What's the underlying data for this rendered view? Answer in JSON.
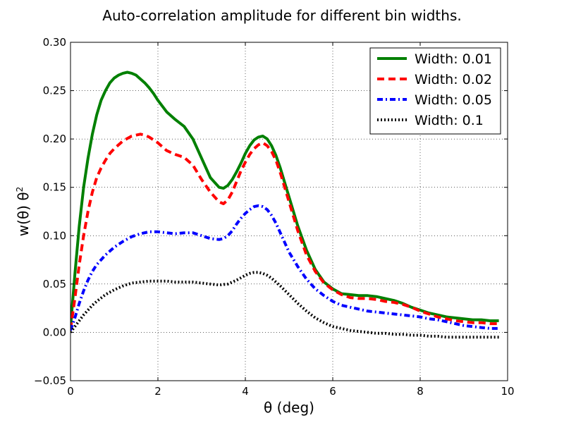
{
  "chart_data": {
    "type": "line",
    "title": "Auto-correlation amplitude for different bin widths.",
    "xlabel": "θ (deg)",
    "ylabel_main": "w(θ) θ",
    "ylabel_superscript": "2",
    "xlim": [
      0,
      10
    ],
    "ylim": [
      -0.05,
      0.3
    ],
    "xticks": [
      0,
      2,
      4,
      6,
      8,
      10
    ],
    "xtick_labels": [
      "0",
      "2",
      "4",
      "6",
      "8",
      "10"
    ],
    "yticks": [
      -0.05,
      0.0,
      0.05,
      0.1,
      0.15,
      0.2,
      0.25,
      0.3
    ],
    "ytick_labels": [
      "−0.05",
      "0.00",
      "0.05",
      "0.10",
      "0.15",
      "0.20",
      "0.25",
      "0.30"
    ],
    "grid": true,
    "legend_position": "top-right",
    "series": [
      {
        "name": "Width: 0.01",
        "color": "#008000",
        "style": "solid",
        "x": [
          0.0,
          0.1,
          0.2,
          0.3,
          0.4,
          0.5,
          0.6,
          0.7,
          0.8,
          0.9,
          1.0,
          1.1,
          1.2,
          1.3,
          1.4,
          1.5,
          1.6,
          1.7,
          1.8,
          1.9,
          2.0,
          2.2,
          2.4,
          2.6,
          2.8,
          3.0,
          3.2,
          3.4,
          3.5,
          3.6,
          3.7,
          3.8,
          3.9,
          4.0,
          4.1,
          4.2,
          4.3,
          4.4,
          4.5,
          4.6,
          4.7,
          4.8,
          4.9,
          5.0,
          5.2,
          5.4,
          5.6,
          5.8,
          6.0,
          6.2,
          6.4,
          6.6,
          6.8,
          7.0,
          7.2,
          7.4,
          7.6,
          7.8,
          8.0,
          8.2,
          8.4,
          8.6,
          8.8,
          9.0,
          9.2,
          9.4,
          9.6,
          9.8
        ],
        "y": [
          0.005,
          0.06,
          0.11,
          0.15,
          0.18,
          0.205,
          0.225,
          0.24,
          0.25,
          0.258,
          0.263,
          0.266,
          0.268,
          0.269,
          0.268,
          0.266,
          0.262,
          0.258,
          0.253,
          0.247,
          0.24,
          0.228,
          0.22,
          0.213,
          0.2,
          0.18,
          0.16,
          0.15,
          0.149,
          0.152,
          0.158,
          0.166,
          0.175,
          0.185,
          0.193,
          0.199,
          0.202,
          0.203,
          0.2,
          0.193,
          0.183,
          0.17,
          0.155,
          0.14,
          0.11,
          0.085,
          0.065,
          0.052,
          0.045,
          0.04,
          0.039,
          0.038,
          0.038,
          0.037,
          0.035,
          0.033,
          0.03,
          0.026,
          0.023,
          0.02,
          0.018,
          0.016,
          0.015,
          0.014,
          0.013,
          0.013,
          0.012,
          0.012
        ]
      },
      {
        "name": "Width: 0.02",
        "color": "#ff0000",
        "style": "dashed",
        "x": [
          0.0,
          0.1,
          0.2,
          0.3,
          0.4,
          0.5,
          0.6,
          0.7,
          0.8,
          0.9,
          1.0,
          1.2,
          1.4,
          1.6,
          1.7,
          1.8,
          1.9,
          2.0,
          2.2,
          2.4,
          2.6,
          2.8,
          3.0,
          3.2,
          3.4,
          3.5,
          3.6,
          3.7,
          3.8,
          3.9,
          4.0,
          4.1,
          4.2,
          4.3,
          4.4,
          4.5,
          4.6,
          4.7,
          4.8,
          4.9,
          5.0,
          5.2,
          5.4,
          5.6,
          5.8,
          6.0,
          6.2,
          6.4,
          6.6,
          6.8,
          7.0,
          7.2,
          7.4,
          7.6,
          7.8,
          8.0,
          8.2,
          8.4,
          8.6,
          8.8,
          9.0,
          9.2,
          9.4,
          9.6,
          9.8
        ],
        "y": [
          0.003,
          0.035,
          0.07,
          0.1,
          0.125,
          0.145,
          0.16,
          0.17,
          0.178,
          0.185,
          0.19,
          0.198,
          0.203,
          0.205,
          0.204,
          0.202,
          0.199,
          0.196,
          0.188,
          0.184,
          0.181,
          0.173,
          0.158,
          0.145,
          0.135,
          0.133,
          0.137,
          0.145,
          0.156,
          0.167,
          0.176,
          0.184,
          0.19,
          0.194,
          0.196,
          0.193,
          0.187,
          0.178,
          0.165,
          0.15,
          0.135,
          0.105,
          0.08,
          0.063,
          0.051,
          0.044,
          0.039,
          0.036,
          0.035,
          0.035,
          0.034,
          0.032,
          0.031,
          0.029,
          0.026,
          0.022,
          0.019,
          0.016,
          0.014,
          0.012,
          0.011,
          0.01,
          0.01,
          0.009,
          0.009
        ]
      },
      {
        "name": "Width: 0.05",
        "color": "#0000ff",
        "style": "dashdot",
        "x": [
          0.0,
          0.1,
          0.2,
          0.3,
          0.4,
          0.5,
          0.6,
          0.8,
          1.0,
          1.2,
          1.4,
          1.6,
          1.8,
          2.0,
          2.2,
          2.4,
          2.6,
          2.8,
          3.0,
          3.2,
          3.4,
          3.5,
          3.6,
          3.7,
          3.8,
          3.9,
          4.0,
          4.1,
          4.2,
          4.3,
          4.4,
          4.5,
          4.6,
          4.7,
          4.8,
          4.9,
          5.0,
          5.2,
          5.4,
          5.6,
          5.8,
          6.0,
          6.2,
          6.4,
          6.6,
          6.8,
          7.0,
          7.2,
          7.4,
          7.6,
          7.8,
          8.0,
          8.2,
          8.4,
          8.6,
          8.8,
          9.0,
          9.2,
          9.4,
          9.6,
          9.8
        ],
        "y": [
          0.002,
          0.015,
          0.03,
          0.043,
          0.054,
          0.063,
          0.07,
          0.08,
          0.088,
          0.094,
          0.099,
          0.102,
          0.104,
          0.104,
          0.103,
          0.102,
          0.103,
          0.103,
          0.1,
          0.097,
          0.096,
          0.097,
          0.1,
          0.105,
          0.112,
          0.118,
          0.123,
          0.127,
          0.13,
          0.131,
          0.13,
          0.127,
          0.121,
          0.113,
          0.103,
          0.093,
          0.083,
          0.068,
          0.055,
          0.045,
          0.038,
          0.032,
          0.028,
          0.026,
          0.024,
          0.022,
          0.021,
          0.02,
          0.019,
          0.018,
          0.017,
          0.016,
          0.014,
          0.013,
          0.011,
          0.009,
          0.007,
          0.006,
          0.005,
          0.004,
          0.004
        ]
      },
      {
        "name": "Width: 0.1",
        "color": "#000000",
        "style": "dotted",
        "x": [
          0.0,
          0.1,
          0.2,
          0.3,
          0.4,
          0.5,
          0.6,
          0.8,
          1.0,
          1.2,
          1.4,
          1.6,
          1.8,
          2.0,
          2.2,
          2.4,
          2.6,
          2.8,
          3.0,
          3.2,
          3.4,
          3.6,
          3.8,
          4.0,
          4.1,
          4.2,
          4.3,
          4.4,
          4.5,
          4.6,
          4.8,
          5.0,
          5.2,
          5.4,
          5.6,
          5.8,
          6.0,
          6.2,
          6.4,
          6.6,
          6.8,
          7.0,
          7.2,
          7.4,
          7.6,
          7.8,
          8.0,
          8.2,
          8.4,
          8.6,
          8.8,
          9.0,
          9.2,
          9.4,
          9.6,
          9.8
        ],
        "y": [
          0.0,
          0.006,
          0.012,
          0.018,
          0.023,
          0.028,
          0.032,
          0.039,
          0.044,
          0.048,
          0.051,
          0.052,
          0.053,
          0.053,
          0.053,
          0.052,
          0.052,
          0.052,
          0.051,
          0.05,
          0.049,
          0.05,
          0.054,
          0.059,
          0.061,
          0.062,
          0.062,
          0.061,
          0.059,
          0.056,
          0.048,
          0.039,
          0.03,
          0.022,
          0.015,
          0.01,
          0.006,
          0.004,
          0.002,
          0.001,
          0.0,
          -0.001,
          -0.001,
          -0.002,
          -0.002,
          -0.003,
          -0.003,
          -0.004,
          -0.004,
          -0.005,
          -0.005,
          -0.005,
          -0.005,
          -0.005,
          -0.005,
          -0.005
        ]
      }
    ]
  }
}
